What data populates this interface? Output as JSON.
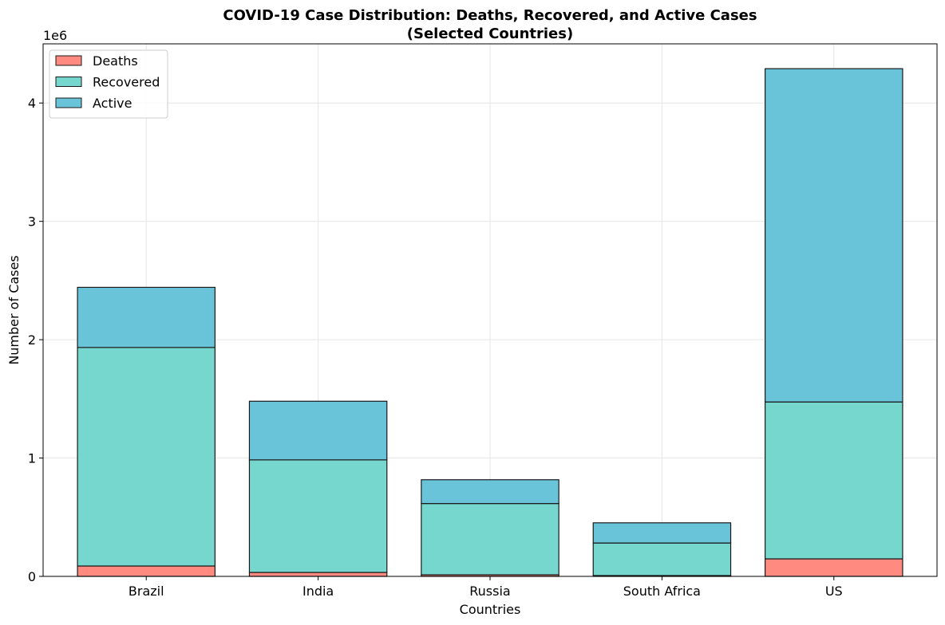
{
  "chart_data": {
    "type": "bar",
    "stacked": true,
    "title_line1": "COVID-19 Case Distribution: Deaths, Recovered, and Active Cases",
    "title_line2": "(Selected Countries)",
    "xlabel": "Countries",
    "ylabel": "Number of Cases",
    "y_offset_text": "1e6",
    "categories": [
      "Brazil",
      "India",
      "Russia",
      "South Africa",
      "US"
    ],
    "series": [
      {
        "name": "Deaths",
        "color": "#ff8a80",
        "values": [
          87618,
          33408,
          13334,
          7067,
          148011
        ]
      },
      {
        "name": "Recovered",
        "color": "#76d7cf",
        "values": [
          1846641,
          951166,
          602249,
          274925,
          1325804
        ]
      },
      {
        "name": "Active",
        "color": "#6ac4d9",
        "values": [
          508116,
          495499,
          201097,
          170537,
          2816444
        ]
      }
    ],
    "ylim": [
      0,
      4500000
    ],
    "yticks": [
      0,
      1000000,
      2000000,
      3000000,
      4000000
    ],
    "ytick_labels": [
      "0",
      "1",
      "2",
      "3",
      "4"
    ],
    "grid": true,
    "legend_position": "top-left",
    "edge_color": "#1a1a1a"
  }
}
